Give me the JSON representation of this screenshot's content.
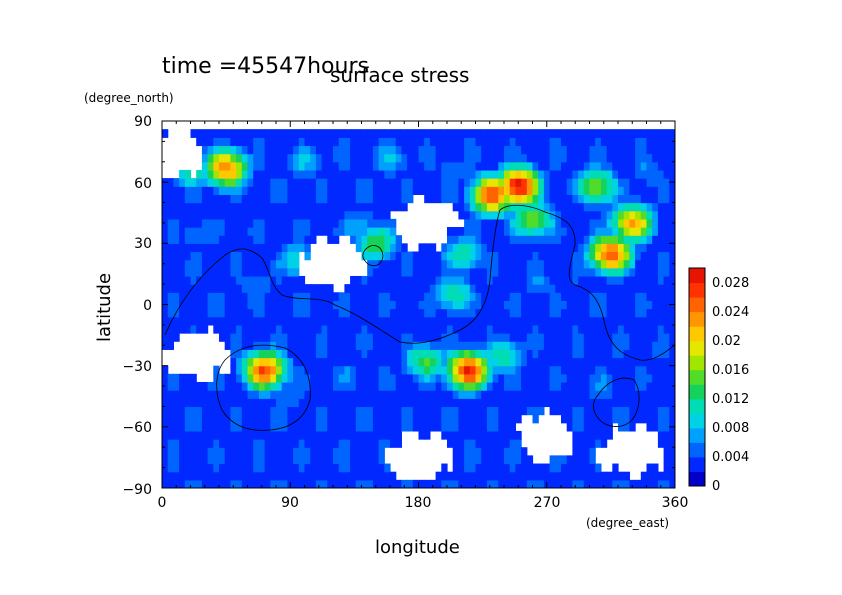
{
  "chart_data": {
    "type": "heatmap",
    "time_label": "time =45547hours",
    "title": "surface stress",
    "xlabel": "longitude",
    "ylabel": "latitude",
    "x_unit": "(degree_east)",
    "y_unit": "(degree_north)",
    "xlim": [
      0,
      360
    ],
    "ylim": [
      -90,
      90
    ],
    "xticks": [
      "0",
      "90",
      "180",
      "270",
      "360"
    ],
    "yticks": [
      "90",
      "60",
      "30",
      "0",
      "−30",
      "−60",
      "−90"
    ],
    "colorbar": {
      "min": 0,
      "max": 0.03,
      "ticks": [
        "0",
        "0.004",
        "0.008",
        "0.012",
        "0.016",
        "0.02",
        "0.024",
        "0.028"
      ],
      "colors": [
        "#0000c8",
        "#0028ff",
        "#0064ff",
        "#00a0ff",
        "#00d2e6",
        "#00dcb4",
        "#14d25a",
        "#50dc28",
        "#a0e600",
        "#e6e600",
        "#ffc800",
        "#ff9600",
        "#ff6400",
        "#ff3200",
        "#e61400"
      ]
    },
    "field_points": [
      {
        "lon": 45,
        "lat": 67,
        "value": 0.024
      },
      {
        "lon": 20,
        "lat": 66,
        "value": 0.012
      },
      {
        "lon": 100,
        "lat": 70,
        "value": 0.008
      },
      {
        "lon": 160,
        "lat": 72,
        "value": 0.008
      },
      {
        "lon": 205,
        "lat": 66,
        "value": 0.006
      },
      {
        "lon": 250,
        "lat": 58,
        "value": 0.03
      },
      {
        "lon": 232,
        "lat": 54,
        "value": 0.026
      },
      {
        "lon": 260,
        "lat": 42,
        "value": 0.016
      },
      {
        "lon": 305,
        "lat": 58,
        "value": 0.016
      },
      {
        "lon": 330,
        "lat": 40,
        "value": 0.022
      },
      {
        "lon": 315,
        "lat": 25,
        "value": 0.026
      },
      {
        "lon": 340,
        "lat": 65,
        "value": 0.006
      },
      {
        "lon": 25,
        "lat": 35,
        "value": 0.006
      },
      {
        "lon": 140,
        "lat": 38,
        "value": 0.008
      },
      {
        "lon": 150,
        "lat": 30,
        "value": 0.014
      },
      {
        "lon": 212,
        "lat": 25,
        "value": 0.012
      },
      {
        "lon": 265,
        "lat": 10,
        "value": 0.006
      },
      {
        "lon": 205,
        "lat": 5,
        "value": 0.012
      },
      {
        "lon": 95,
        "lat": 22,
        "value": 0.01
      },
      {
        "lon": 65,
        "lat": 10,
        "value": 0.006
      },
      {
        "lon": 72,
        "lat": -32,
        "value": 0.026
      },
      {
        "lon": 90,
        "lat": -45,
        "value": 0.006
      },
      {
        "lon": 185,
        "lat": -28,
        "value": 0.014
      },
      {
        "lon": 215,
        "lat": -32,
        "value": 0.028
      },
      {
        "lon": 240,
        "lat": -25,
        "value": 0.012
      },
      {
        "lon": 130,
        "lat": -35,
        "value": 0.006
      },
      {
        "lon": 310,
        "lat": -40,
        "value": 0.006
      },
      {
        "lon": 345,
        "lat": -22,
        "value": 0.004
      },
      {
        "lon": 160,
        "lat": -55,
        "value": 0.004
      },
      {
        "lon": 30,
        "lat": -55,
        "value": 0.004
      }
    ],
    "empty_regions": [
      {
        "lon": 10,
        "lat": 75
      },
      {
        "lon": 120,
        "lat": 20
      },
      {
        "lon": 185,
        "lat": 40
      },
      {
        "lon": 25,
        "lat": -25
      },
      {
        "lon": 180,
        "lat": -75
      },
      {
        "lon": 270,
        "lat": -65
      },
      {
        "lon": 330,
        "lat": -72
      }
    ]
  }
}
